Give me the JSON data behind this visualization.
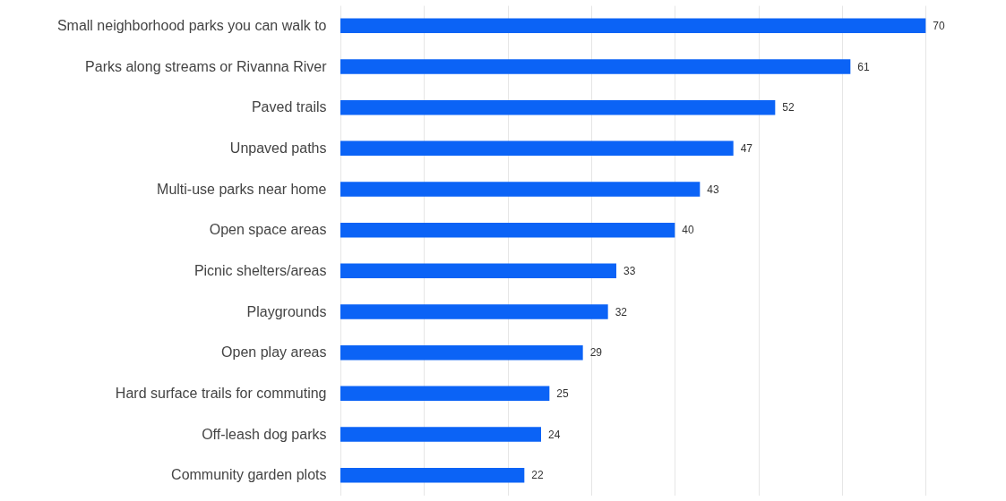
{
  "chart_data": {
    "type": "bar",
    "orientation": "horizontal",
    "categories": [
      "Small neighborhood parks you can walk to",
      "Parks along streams or Rivanna River",
      "Paved trails",
      "Unpaved paths",
      "Multi-use parks near home",
      "Open space areas",
      "Picnic shelters/areas",
      "Playgrounds",
      "Open play areas",
      "Hard surface trails for commuting",
      "Off-leash dog parks",
      "Community garden plots"
    ],
    "values": [
      70,
      61,
      52,
      47,
      43,
      40,
      33,
      32,
      29,
      25,
      24,
      22
    ],
    "color": "#0b63f6",
    "data_labels": true,
    "grid": "x",
    "tick_labels": "y",
    "xlim": [
      0,
      78
    ],
    "xticks": [
      {
        "value": 0,
        "label": null
      },
      {
        "value": 10,
        "label": null
      },
      {
        "value": 20,
        "label": null
      },
      {
        "value": 30,
        "label": null
      },
      {
        "value": 40,
        "label": null
      },
      {
        "value": 50,
        "label": null
      },
      {
        "value": 60,
        "label": null
      },
      {
        "value": 70,
        "label": null
      }
    ]
  }
}
